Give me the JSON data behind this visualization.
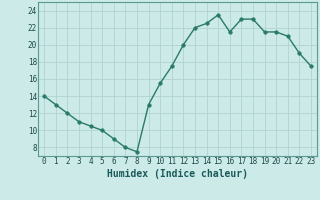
{
  "x": [
    0,
    1,
    2,
    3,
    4,
    5,
    6,
    7,
    8,
    9,
    10,
    11,
    12,
    13,
    14,
    15,
    16,
    17,
    18,
    19,
    20,
    21,
    22,
    23
  ],
  "y": [
    14,
    13,
    12,
    11,
    10.5,
    10,
    9,
    8,
    7.5,
    13,
    15.5,
    17.5,
    20,
    22,
    22.5,
    23.5,
    21.5,
    23,
    23,
    21.5,
    21.5,
    21,
    19,
    17.5
  ],
  "line_color": "#2a7a6a",
  "marker_color": "#2a7a6a",
  "bg_color": "#cceae8",
  "grid_color": "#b0d4d0",
  "xlabel": "Humidex (Indice chaleur)",
  "xlim": [
    -0.5,
    23.5
  ],
  "ylim": [
    7,
    25
  ],
  "yticks": [
    8,
    10,
    12,
    14,
    16,
    18,
    20,
    22,
    24
  ],
  "xticks": [
    0,
    1,
    2,
    3,
    4,
    5,
    6,
    7,
    8,
    9,
    10,
    11,
    12,
    13,
    14,
    15,
    16,
    17,
    18,
    19,
    20,
    21,
    22,
    23
  ],
  "tick_fontsize": 5.5,
  "label_fontsize": 7,
  "marker_size": 2.5,
  "line_width": 1.0
}
